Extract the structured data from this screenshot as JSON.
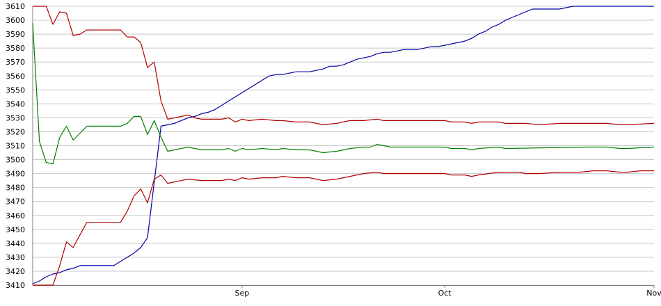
{
  "chart_data": {
    "type": "line",
    "title": "",
    "xlabel": "",
    "ylabel": "",
    "ylim": [
      3410,
      3610
    ],
    "y_ticks": [
      3410,
      3420,
      3430,
      3440,
      3450,
      3460,
      3470,
      3480,
      3490,
      3500,
      3510,
      3520,
      3530,
      3540,
      3550,
      3560,
      3570,
      3580,
      3590,
      3600,
      3610
    ],
    "xlim": [
      "2021-08-01",
      "2021-11-01"
    ],
    "x_ticks": [
      {
        "label": "Sep",
        "x": "2021-09-01"
      },
      {
        "label": "Oct",
        "x": "2021-10-01"
      },
      {
        "label": "Nov",
        "x": "2021-11-01"
      }
    ],
    "grid": "horizontal",
    "legend": "none",
    "colors": {
      "grid": "#c8c8c8",
      "axis": "#808080"
    },
    "series": [
      {
        "color": "#0000a0",
        "points": [
          [
            "2021-08-01",
            3411
          ],
          [
            "2021-08-02",
            3413
          ],
          [
            "2021-08-03",
            3416
          ],
          [
            "2021-08-04",
            3418
          ],
          [
            "2021-08-05",
            3419
          ],
          [
            "2021-08-06",
            3421
          ],
          [
            "2021-08-07",
            3422
          ],
          [
            "2021-08-08",
            3424
          ],
          [
            "2021-08-13",
            3424
          ],
          [
            "2021-08-14",
            3427
          ],
          [
            "2021-08-15",
            3430
          ],
          [
            "2021-08-16",
            3433
          ],
          [
            "2021-08-17",
            3437
          ],
          [
            "2021-08-18",
            3444
          ],
          [
            "2021-08-19",
            3484
          ],
          [
            "2021-08-20",
            3524
          ],
          [
            "2021-08-21",
            3525
          ],
          [
            "2021-08-22",
            3526
          ],
          [
            "2021-08-23",
            3528
          ],
          [
            "2021-08-24",
            3530
          ],
          [
            "2021-08-25",
            3531
          ],
          [
            "2021-08-26",
            3533
          ],
          [
            "2021-08-27",
            3534
          ],
          [
            "2021-08-28",
            3536
          ],
          [
            "2021-08-29",
            3539
          ],
          [
            "2021-08-30",
            3542
          ],
          [
            "2021-08-31",
            3545
          ],
          [
            "2021-09-01",
            3548
          ],
          [
            "2021-09-02",
            3551
          ],
          [
            "2021-09-03",
            3554
          ],
          [
            "2021-09-04",
            3557
          ],
          [
            "2021-09-05",
            3560
          ],
          [
            "2021-09-06",
            3561
          ],
          [
            "2021-09-07",
            3561
          ],
          [
            "2021-09-08",
            3562
          ],
          [
            "2021-09-09",
            3563
          ],
          [
            "2021-09-10",
            3563
          ],
          [
            "2021-09-11",
            3563
          ],
          [
            "2021-09-12",
            3564
          ],
          [
            "2021-09-13",
            3565
          ],
          [
            "2021-09-14",
            3567
          ],
          [
            "2021-09-15",
            3567
          ],
          [
            "2021-09-16",
            3568
          ],
          [
            "2021-09-17",
            3570
          ],
          [
            "2021-09-18",
            3572
          ],
          [
            "2021-09-19",
            3573
          ],
          [
            "2021-09-20",
            3574
          ],
          [
            "2021-09-21",
            3576
          ],
          [
            "2021-09-22",
            3577
          ],
          [
            "2021-09-23",
            3577
          ],
          [
            "2021-09-24",
            3578
          ],
          [
            "2021-09-25",
            3579
          ],
          [
            "2021-09-26",
            3579
          ],
          [
            "2021-09-27",
            3579
          ],
          [
            "2021-09-28",
            3580
          ],
          [
            "2021-09-29",
            3581
          ],
          [
            "2021-09-30",
            3581
          ],
          [
            "2021-10-01",
            3582
          ],
          [
            "2021-10-02",
            3583
          ],
          [
            "2021-10-03",
            3584
          ],
          [
            "2021-10-04",
            3585
          ],
          [
            "2021-10-05",
            3587
          ],
          [
            "2021-10-06",
            3590
          ],
          [
            "2021-10-07",
            3592
          ],
          [
            "2021-10-08",
            3595
          ],
          [
            "2021-10-09",
            3597
          ],
          [
            "2021-10-10",
            3600
          ],
          [
            "2021-10-11",
            3602
          ],
          [
            "2021-10-12",
            3604
          ],
          [
            "2021-10-13",
            3606
          ],
          [
            "2021-10-14",
            3608
          ],
          [
            "2021-10-15",
            3608
          ],
          [
            "2021-10-16",
            3608
          ],
          [
            "2021-10-17",
            3608
          ],
          [
            "2021-10-18",
            3608
          ],
          [
            "2021-10-19",
            3609
          ],
          [
            "2021-10-20",
            3610
          ],
          [
            "2021-10-21",
            3610
          ],
          [
            "2021-10-22",
            3610
          ],
          [
            "2021-11-01",
            3610
          ]
        ]
      },
      {
        "color": "#008000",
        "points": [
          [
            "2021-08-01",
            3598
          ],
          [
            "2021-08-02",
            3513
          ],
          [
            "2021-08-03",
            3498
          ],
          [
            "2021-08-04",
            3497
          ],
          [
            "2021-08-05",
            3516
          ],
          [
            "2021-08-06",
            3524
          ],
          [
            "2021-08-07",
            3514
          ],
          [
            "2021-08-08",
            3519
          ],
          [
            "2021-08-09",
            3524
          ],
          [
            "2021-08-14",
            3524
          ],
          [
            "2021-08-15",
            3526
          ],
          [
            "2021-08-16",
            3531
          ],
          [
            "2021-08-17",
            3531
          ],
          [
            "2021-08-18",
            3518
          ],
          [
            "2021-08-19",
            3528
          ],
          [
            "2021-08-20",
            3516
          ],
          [
            "2021-08-21",
            3506
          ],
          [
            "2021-08-22",
            3507
          ],
          [
            "2021-08-24",
            3509
          ],
          [
            "2021-08-26",
            3507
          ],
          [
            "2021-08-29",
            3507
          ],
          [
            "2021-08-30",
            3508
          ],
          [
            "2021-08-31",
            3506
          ],
          [
            "2021-09-01",
            3508
          ],
          [
            "2021-09-02",
            3507
          ],
          [
            "2021-09-04",
            3508
          ],
          [
            "2021-09-06",
            3507
          ],
          [
            "2021-09-07",
            3508
          ],
          [
            "2021-09-09",
            3507
          ],
          [
            "2021-09-11",
            3507
          ],
          [
            "2021-09-13",
            3505
          ],
          [
            "2021-09-15",
            3506
          ],
          [
            "2021-09-17",
            3508
          ],
          [
            "2021-09-19",
            3509
          ],
          [
            "2021-09-20",
            3509
          ],
          [
            "2021-09-21",
            3511
          ],
          [
            "2021-09-22",
            3510
          ],
          [
            "2021-09-23",
            3509
          ],
          [
            "2021-10-01",
            3509
          ],
          [
            "2021-10-02",
            3508
          ],
          [
            "2021-10-04",
            3508
          ],
          [
            "2021-10-05",
            3507
          ],
          [
            "2021-10-06",
            3508
          ],
          [
            "2021-10-09",
            3509
          ],
          [
            "2021-10-10",
            3508
          ],
          [
            "2021-10-22",
            3509
          ],
          [
            "2021-10-25",
            3509
          ],
          [
            "2021-10-27",
            3508
          ],
          [
            "2021-10-28",
            3508
          ],
          [
            "2021-11-01",
            3509
          ]
        ]
      },
      {
        "color": "#b00000",
        "points": [
          [
            "2021-08-01",
            3610
          ],
          [
            "2021-08-02",
            3610
          ],
          [
            "2021-08-03",
            3610
          ],
          [
            "2021-08-04",
            3597
          ],
          [
            "2021-08-05",
            3606
          ],
          [
            "2021-08-06",
            3605
          ],
          [
            "2021-08-07",
            3589
          ],
          [
            "2021-08-08",
            3590
          ],
          [
            "2021-08-09",
            3593
          ],
          [
            "2021-08-14",
            3593
          ],
          [
            "2021-08-15",
            3588
          ],
          [
            "2021-08-16",
            3588
          ],
          [
            "2021-08-17",
            3584
          ],
          [
            "2021-08-18",
            3566
          ],
          [
            "2021-08-19",
            3570
          ],
          [
            "2021-08-20",
            3542
          ],
          [
            "2021-08-21",
            3529
          ],
          [
            "2021-08-22",
            3530
          ],
          [
            "2021-08-24",
            3532
          ],
          [
            "2021-08-25",
            3530
          ],
          [
            "2021-08-26",
            3529
          ],
          [
            "2021-08-29",
            3529
          ],
          [
            "2021-08-30",
            3530
          ],
          [
            "2021-08-31",
            3527
          ],
          [
            "2021-09-01",
            3529
          ],
          [
            "2021-09-02",
            3528
          ],
          [
            "2021-09-04",
            3529
          ],
          [
            "2021-09-06",
            3528
          ],
          [
            "2021-09-07",
            3528
          ],
          [
            "2021-09-09",
            3527
          ],
          [
            "2021-09-11",
            3527
          ],
          [
            "2021-09-13",
            3525
          ],
          [
            "2021-09-15",
            3526
          ],
          [
            "2021-09-17",
            3528
          ],
          [
            "2021-09-19",
            3528
          ],
          [
            "2021-09-21",
            3529
          ],
          [
            "2021-09-22",
            3528
          ],
          [
            "2021-10-01",
            3528
          ],
          [
            "2021-10-02",
            3527
          ],
          [
            "2021-10-04",
            3527
          ],
          [
            "2021-10-05",
            3526
          ],
          [
            "2021-10-06",
            3527
          ],
          [
            "2021-10-09",
            3527
          ],
          [
            "2021-10-10",
            3526
          ],
          [
            "2021-10-13",
            3526
          ],
          [
            "2021-10-15",
            3525
          ],
          [
            "2021-10-18",
            3526
          ],
          [
            "2021-10-21",
            3526
          ],
          [
            "2021-10-25",
            3526
          ],
          [
            "2021-10-27",
            3525
          ],
          [
            "2021-10-28",
            3525
          ],
          [
            "2021-11-01",
            3526
          ]
        ]
      },
      {
        "color": "#b00000",
        "points": [
          [
            "2021-08-01",
            3410
          ],
          [
            "2021-08-02",
            3410
          ],
          [
            "2021-08-03",
            3410
          ],
          [
            "2021-08-04",
            3410
          ],
          [
            "2021-08-05",
            3424
          ],
          [
            "2021-08-06",
            3441
          ],
          [
            "2021-08-07",
            3437
          ],
          [
            "2021-08-08",
            3446
          ],
          [
            "2021-08-09",
            3455
          ],
          [
            "2021-08-14",
            3455
          ],
          [
            "2021-08-15",
            3463
          ],
          [
            "2021-08-16",
            3474
          ],
          [
            "2021-08-17",
            3479
          ],
          [
            "2021-08-18",
            3469
          ],
          [
            "2021-08-19",
            3486
          ],
          [
            "2021-08-20",
            3489
          ],
          [
            "2021-08-21",
            3483
          ],
          [
            "2021-08-22",
            3484
          ],
          [
            "2021-08-24",
            3486
          ],
          [
            "2021-08-26",
            3485
          ],
          [
            "2021-08-29",
            3485
          ],
          [
            "2021-08-30",
            3486
          ],
          [
            "2021-08-31",
            3485
          ],
          [
            "2021-09-01",
            3487
          ],
          [
            "2021-09-02",
            3486
          ],
          [
            "2021-09-04",
            3487
          ],
          [
            "2021-09-06",
            3487
          ],
          [
            "2021-09-07",
            3488
          ],
          [
            "2021-09-09",
            3487
          ],
          [
            "2021-09-11",
            3487
          ],
          [
            "2021-09-13",
            3485
          ],
          [
            "2021-09-15",
            3486
          ],
          [
            "2021-09-17",
            3488
          ],
          [
            "2021-09-19",
            3490
          ],
          [
            "2021-09-21",
            3491
          ],
          [
            "2021-09-22",
            3490
          ],
          [
            "2021-10-01",
            3490
          ],
          [
            "2021-10-02",
            3489
          ],
          [
            "2021-10-04",
            3489
          ],
          [
            "2021-10-05",
            3488
          ],
          [
            "2021-10-06",
            3489
          ],
          [
            "2021-10-09",
            3491
          ],
          [
            "2021-10-12",
            3491
          ],
          [
            "2021-10-13",
            3490
          ],
          [
            "2021-10-15",
            3490
          ],
          [
            "2021-10-18",
            3491
          ],
          [
            "2021-10-21",
            3491
          ],
          [
            "2021-10-23",
            3492
          ],
          [
            "2021-10-25",
            3492
          ],
          [
            "2021-10-27",
            3491
          ],
          [
            "2021-10-28",
            3491
          ],
          [
            "2021-10-30",
            3492
          ],
          [
            "2021-11-01",
            3492
          ]
        ]
      }
    ]
  }
}
